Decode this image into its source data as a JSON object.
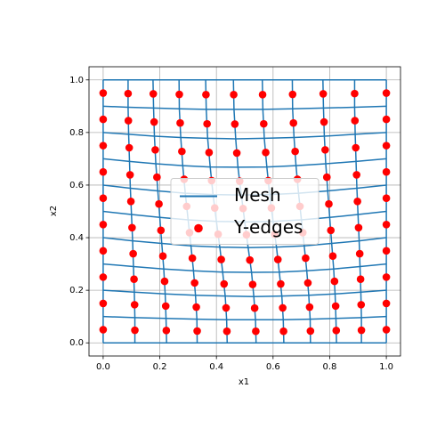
{
  "chart_data": {
    "type": "mesh",
    "xlabel": "x1",
    "ylabel": "x2",
    "xlim": [
      -0.05,
      1.05
    ],
    "ylim": [
      -0.05,
      1.05
    ],
    "xticks": [
      {
        "value": 0,
        "label": "0.0"
      },
      {
        "value": 0.2,
        "label": "0.2"
      },
      {
        "value": 0.4,
        "label": "0.4"
      },
      {
        "value": 0.6,
        "label": "0.6"
      },
      {
        "value": 0.8,
        "label": "0.8"
      },
      {
        "value": 1,
        "label": "1.0"
      }
    ],
    "yticks": [
      {
        "value": 0,
        "label": "0.0"
      },
      {
        "value": 0.2,
        "label": "0.2"
      },
      {
        "value": 0.4,
        "label": "0.4"
      },
      {
        "value": 0.6,
        "label": "0.6"
      },
      {
        "value": 0.8,
        "label": "0.8"
      },
      {
        "value": 1,
        "label": "1.0"
      }
    ],
    "grid": true,
    "legend": "center",
    "series": [
      {
        "name": "Mesh",
        "color": "#1f77b4",
        "x": [
          [
            0,
            0.112,
            0.224,
            0.332,
            0.438,
            0.54,
            0.638,
            0.732,
            0.824,
            0.912,
            1
          ],
          [
            0,
            0.112,
            0.222,
            0.331,
            0.436,
            0.538,
            0.636,
            0.731,
            0.822,
            0.912,
            1
          ],
          [
            0,
            0.11,
            0.219,
            0.326,
            0.431,
            0.532,
            0.631,
            0.726,
            0.819,
            0.91,
            1
          ],
          [
            0,
            0.107,
            0.214,
            0.319,
            0.422,
            0.524,
            0.622,
            0.719,
            0.814,
            0.907,
            1
          ],
          [
            0,
            0.104,
            0.207,
            0.31,
            0.412,
            0.512,
            0.612,
            0.71,
            0.807,
            0.904,
            1
          ],
          [
            0,
            0.1,
            0.2,
            0.3,
            0.4,
            0.5,
            0.6,
            0.7,
            0.8,
            0.9,
            1
          ],
          [
            0,
            0.096,
            0.193,
            0.29,
            0.388,
            0.488,
            0.588,
            0.69,
            0.793,
            0.896,
            1
          ],
          [
            0,
            0.093,
            0.186,
            0.281,
            0.378,
            0.476,
            0.578,
            0.681,
            0.786,
            0.893,
            1
          ],
          [
            0,
            0.09,
            0.181,
            0.274,
            0.369,
            0.468,
            0.569,
            0.674,
            0.781,
            0.89,
            1
          ],
          [
            0,
            0.088,
            0.178,
            0.269,
            0.364,
            0.462,
            0.564,
            0.669,
            0.778,
            0.888,
            1
          ],
          [
            0,
            0.088,
            0.176,
            0.268,
            0.362,
            0.46,
            0.562,
            0.668,
            0.776,
            0.888,
            1
          ]
        ],
        "y": [
          [
            0,
            0,
            0,
            0,
            0,
            0,
            0,
            0,
            0,
            0,
            0
          ],
          [
            0.1,
            0.096,
            0.093,
            0.09,
            0.088,
            0.088,
            0.088,
            0.09,
            0.093,
            0.096,
            0.1
          ],
          [
            0.2,
            0.193,
            0.186,
            0.181,
            0.178,
            0.176,
            0.178,
            0.181,
            0.186,
            0.193,
            0.2
          ],
          [
            0.3,
            0.29,
            0.281,
            0.274,
            0.269,
            0.268,
            0.269,
            0.274,
            0.281,
            0.29,
            0.3
          ],
          [
            0.4,
            0.388,
            0.378,
            0.369,
            0.364,
            0.362,
            0.364,
            0.369,
            0.378,
            0.388,
            0.4
          ],
          [
            0.5,
            0.488,
            0.477,
            0.468,
            0.462,
            0.46,
            0.462,
            0.468,
            0.477,
            0.488,
            0.5
          ],
          [
            0.6,
            0.588,
            0.578,
            0.569,
            0.564,
            0.562,
            0.564,
            0.569,
            0.578,
            0.588,
            0.6
          ],
          [
            0.7,
            0.69,
            0.681,
            0.674,
            0.669,
            0.668,
            0.669,
            0.674,
            0.681,
            0.69,
            0.7
          ],
          [
            0.8,
            0.793,
            0.786,
            0.781,
            0.778,
            0.776,
            0.778,
            0.781,
            0.786,
            0.793,
            0.8
          ],
          [
            0.9,
            0.896,
            0.893,
            0.89,
            0.888,
            0.888,
            0.888,
            0.89,
            0.893,
            0.896,
            0.9
          ],
          [
            1,
            1,
            1,
            1,
            1,
            1,
            1,
            1,
            1,
            1,
            1
          ]
        ]
      },
      {
        "name": "Y-edges",
        "color": "#ff0000",
        "x": [
          [
            0,
            0.112,
            0.223,
            0.332,
            0.437,
            0.539,
            0.637,
            0.732,
            0.823,
            0.912,
            1
          ],
          [
            0,
            0.111,
            0.221,
            0.329,
            0.434,
            0.535,
            0.634,
            0.729,
            0.821,
            0.911,
            1
          ],
          [
            0,
            0.109,
            0.217,
            0.323,
            0.427,
            0.528,
            0.627,
            0.723,
            0.817,
            0.909,
            1
          ],
          [
            0,
            0.106,
            0.211,
            0.315,
            0.417,
            0.518,
            0.617,
            0.715,
            0.811,
            0.906,
            1
          ],
          [
            0,
            0.102,
            0.204,
            0.305,
            0.406,
            0.506,
            0.606,
            0.705,
            0.804,
            0.902,
            1
          ],
          [
            0,
            0.098,
            0.197,
            0.295,
            0.394,
            0.494,
            0.594,
            0.695,
            0.797,
            0.898,
            1
          ],
          [
            0,
            0.095,
            0.19,
            0.286,
            0.383,
            0.482,
            0.583,
            0.686,
            0.79,
            0.895,
            1
          ],
          [
            0,
            0.092,
            0.184,
            0.278,
            0.374,
            0.472,
            0.574,
            0.678,
            0.784,
            0.892,
            1
          ],
          [
            0,
            0.089,
            0.18,
            0.272,
            0.367,
            0.465,
            0.567,
            0.672,
            0.78,
            0.889,
            1
          ],
          [
            0,
            0.088,
            0.177,
            0.269,
            0.363,
            0.461,
            0.563,
            0.669,
            0.777,
            0.888,
            1
          ]
        ],
        "y": [
          [
            0.05,
            0.048,
            0.047,
            0.045,
            0.044,
            0.044,
            0.044,
            0.045,
            0.047,
            0.048,
            0.05
          ],
          [
            0.15,
            0.145,
            0.14,
            0.136,
            0.133,
            0.132,
            0.133,
            0.136,
            0.14,
            0.145,
            0.15
          ],
          [
            0.25,
            0.242,
            0.234,
            0.228,
            0.224,
            0.222,
            0.224,
            0.228,
            0.234,
            0.242,
            0.25
          ],
          [
            0.35,
            0.339,
            0.33,
            0.322,
            0.317,
            0.315,
            0.317,
            0.322,
            0.33,
            0.339,
            0.35
          ],
          [
            0.45,
            0.438,
            0.428,
            0.419,
            0.413,
            0.411,
            0.413,
            0.419,
            0.428,
            0.438,
            0.45
          ],
          [
            0.55,
            0.538,
            0.528,
            0.519,
            0.513,
            0.511,
            0.513,
            0.519,
            0.528,
            0.538,
            0.55
          ],
          [
            0.65,
            0.639,
            0.63,
            0.622,
            0.617,
            0.615,
            0.617,
            0.622,
            0.63,
            0.639,
            0.65
          ],
          [
            0.75,
            0.742,
            0.734,
            0.728,
            0.724,
            0.722,
            0.724,
            0.728,
            0.734,
            0.742,
            0.75
          ],
          [
            0.85,
            0.845,
            0.84,
            0.836,
            0.833,
            0.832,
            0.833,
            0.836,
            0.84,
            0.845,
            0.85
          ],
          [
            0.95,
            0.948,
            0.947,
            0.945,
            0.944,
            0.944,
            0.944,
            0.945,
            0.947,
            0.948,
            0.95
          ]
        ]
      }
    ]
  }
}
